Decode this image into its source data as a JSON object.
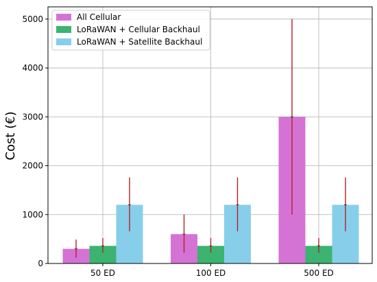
{
  "chart_data": {
    "type": "bar",
    "title": "",
    "xlabel": "",
    "ylabel": "Cost (€)",
    "ylim": [
      0,
      5250
    ],
    "yticks": [
      0,
      1000,
      2000,
      3000,
      4000,
      5000
    ],
    "grid": true,
    "legend_position": "top-left",
    "categories": [
      "50 ED",
      "100 ED",
      "500 ED"
    ],
    "series": [
      {
        "name": "All Cellular",
        "color": "#d473d4",
        "values": [
          300,
          600,
          3000
        ],
        "error_low": [
          120,
          220,
          1000
        ],
        "error_high": [
          490,
          1000,
          5000
        ]
      },
      {
        "name": "LoRaWAN + Cellular Backhaul",
        "color": "#3cb371",
        "values": [
          360,
          360,
          360
        ],
        "error_low": [
          220,
          220,
          220
        ],
        "error_high": [
          520,
          520,
          520
        ]
      },
      {
        "name": "LoRaWAN + Satellite Backhaul",
        "color": "#87ceeb",
        "values": [
          1200,
          1200,
          1200
        ],
        "error_low": [
          660,
          660,
          660
        ],
        "error_high": [
          1760,
          1760,
          1760
        ]
      }
    ],
    "error_color": "#b22222"
  }
}
